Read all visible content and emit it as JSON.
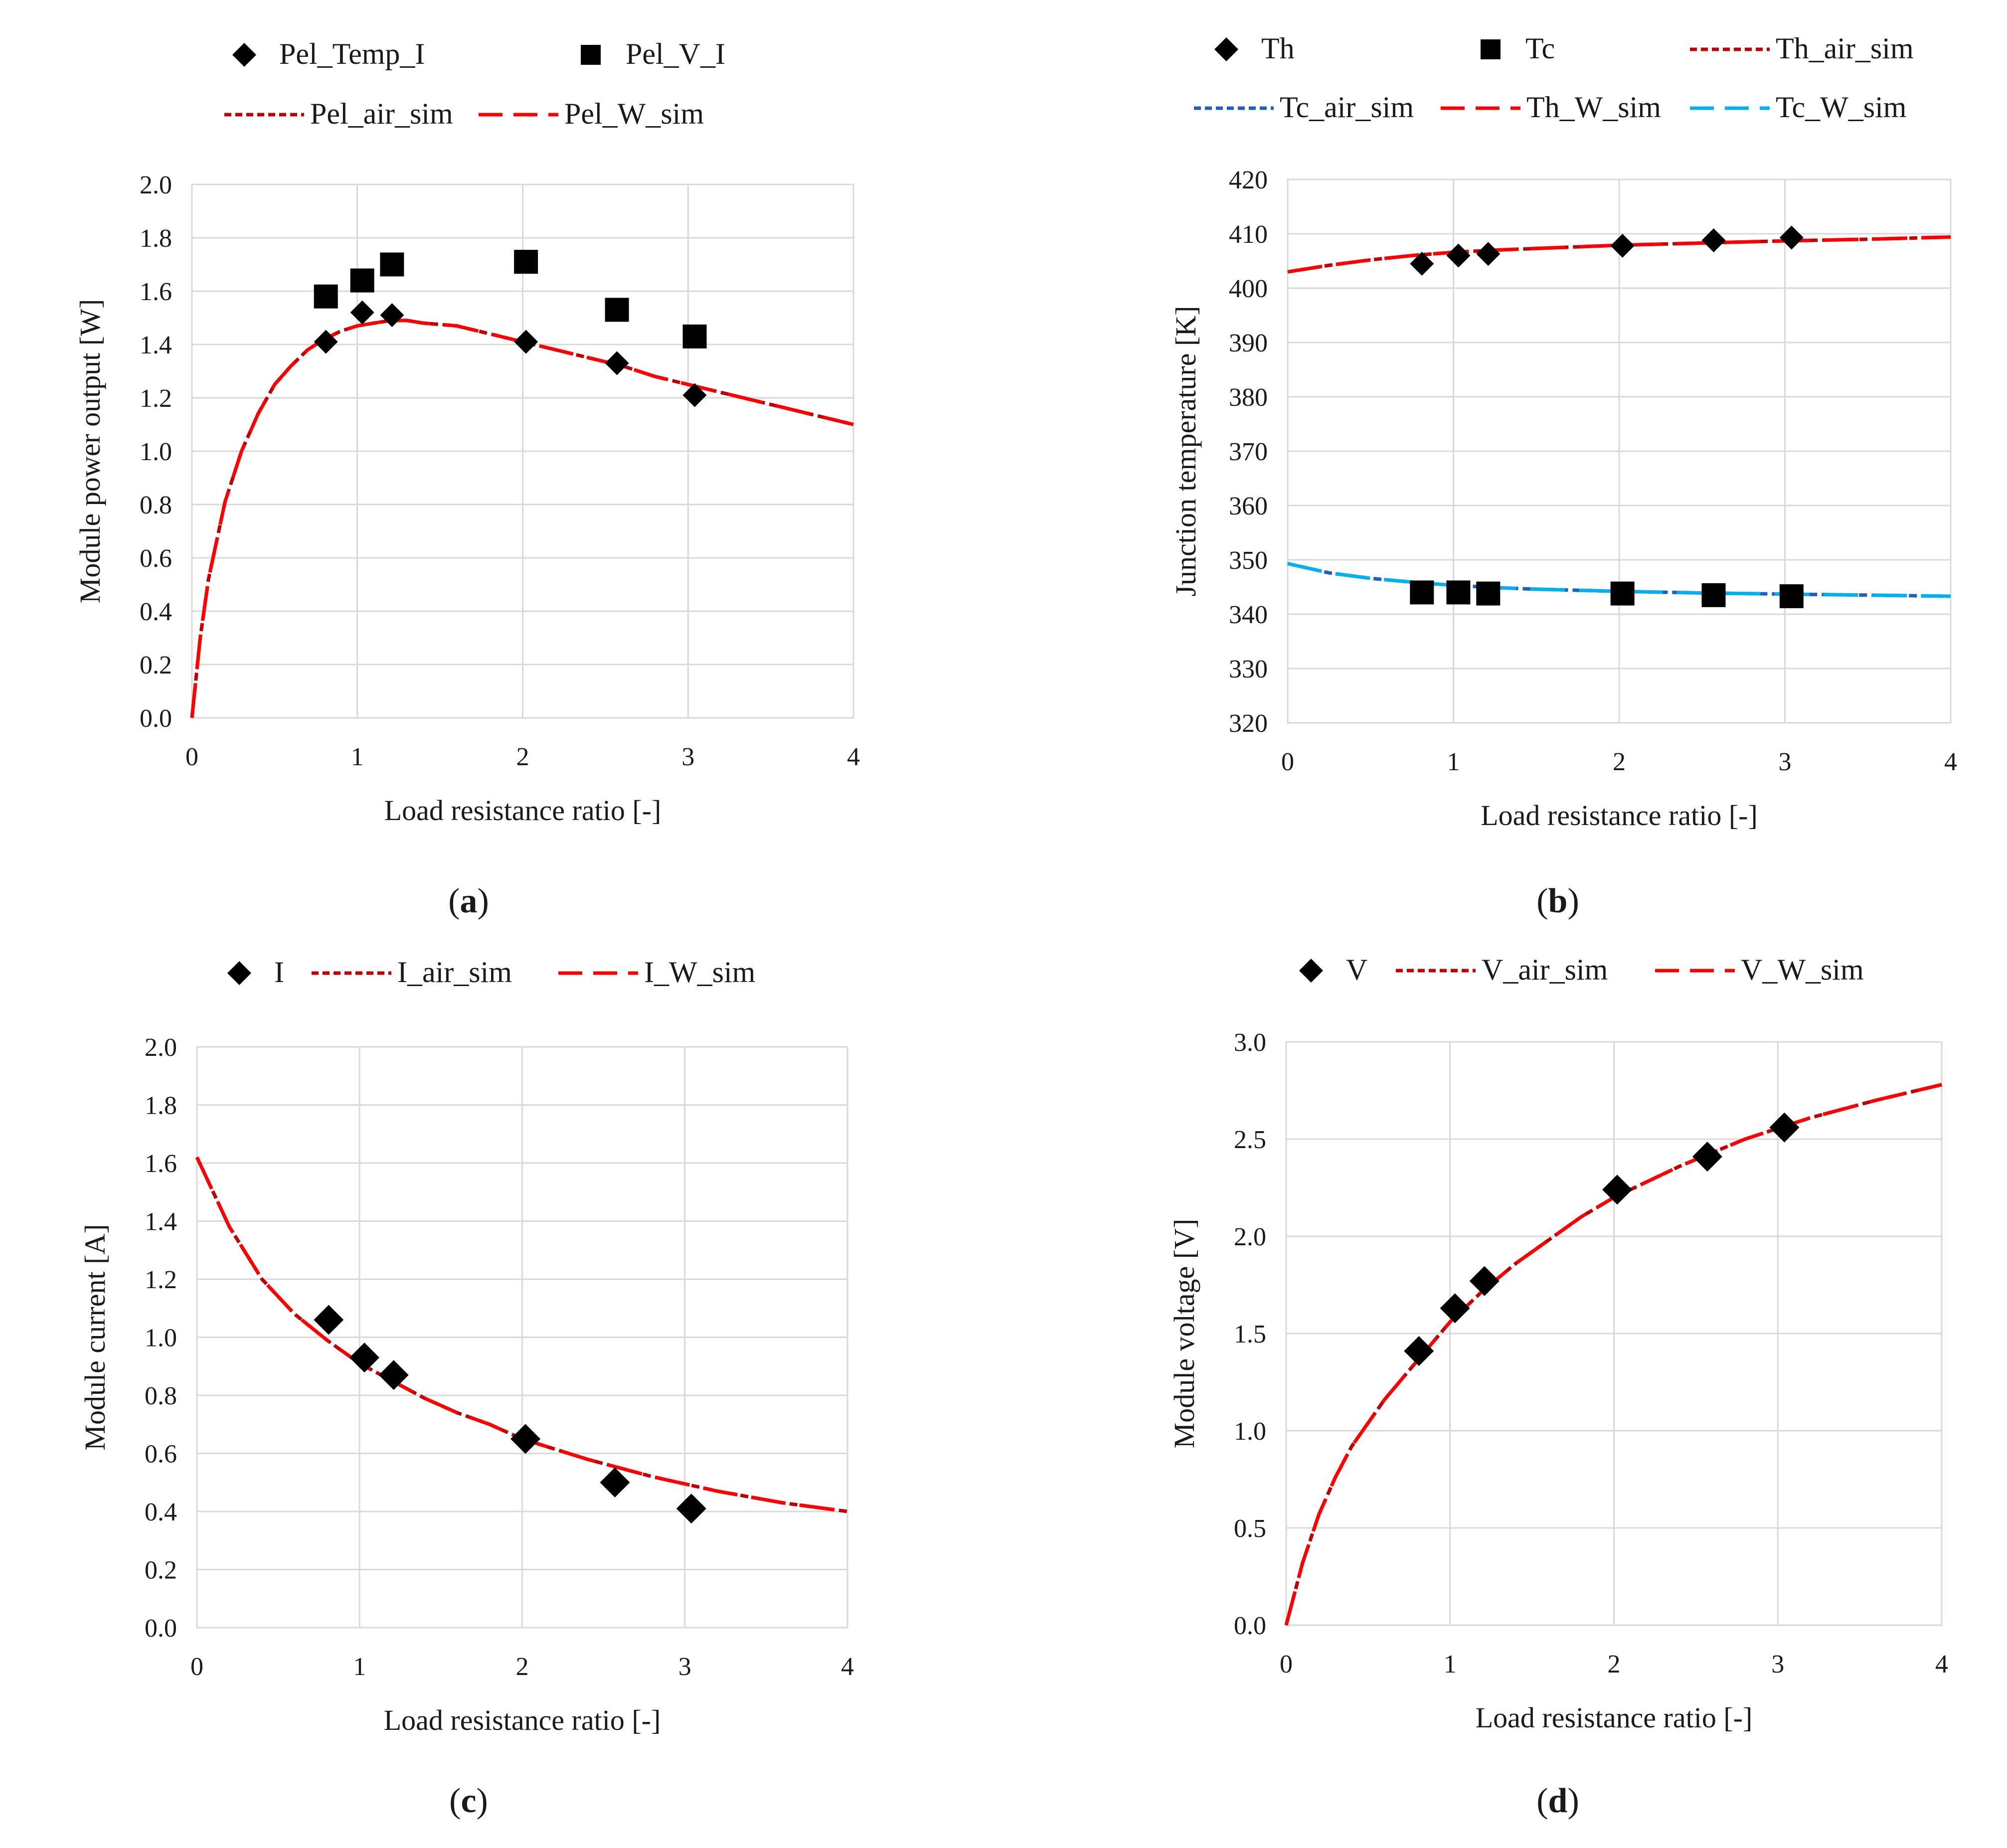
{
  "chart_data": [
    {
      "panel": "a",
      "type": "scatter",
      "caption_letter": "a",
      "xlabel": "Load resistance ratio [-]",
      "ylabel": "Module power output [W]",
      "xlim": [
        0,
        4
      ],
      "ylim": [
        0,
        2
      ],
      "xticks": [
        "0",
        "1",
        "2",
        "3",
        "4"
      ],
      "yticks": [
        "0.0",
        "0.2",
        "0.4",
        "0.6",
        "0.8",
        "1.0",
        "1.2",
        "1.4",
        "1.6",
        "1.8",
        "2.0"
      ],
      "legend_position": "top",
      "series": [
        {
          "name": "Pel_Temp_I",
          "kind": "marker",
          "marker": "diamond",
          "color": "#000000",
          "x": [
            0.81,
            1.03,
            1.21,
            2.02,
            2.57,
            3.04
          ],
          "y": [
            1.41,
            1.52,
            1.51,
            1.41,
            1.33,
            1.21
          ]
        },
        {
          "name": "Pel_V_I",
          "kind": "marker",
          "marker": "square",
          "color": "#000000",
          "x": [
            0.81,
            1.03,
            1.21,
            2.02,
            2.57,
            3.04
          ],
          "y": [
            1.58,
            1.64,
            1.7,
            1.71,
            1.53,
            1.43
          ]
        },
        {
          "name": "Pel_air_sim",
          "kind": "line",
          "dash": "short",
          "color": "#c00000",
          "x": [
            0,
            0.05,
            0.1,
            0.2,
            0.3,
            0.4,
            0.5,
            0.6,
            0.7,
            0.8,
            0.9,
            1.0,
            1.1,
            1.2,
            1.3,
            1.4,
            1.6,
            1.8,
            2.0,
            2.2,
            2.4,
            2.6,
            2.8,
            3.0,
            3.2,
            3.4,
            3.6,
            3.8,
            4.0
          ],
          "y": [
            0,
            0.3,
            0.52,
            0.81,
            1.0,
            1.14,
            1.25,
            1.32,
            1.38,
            1.42,
            1.45,
            1.47,
            1.48,
            1.49,
            1.49,
            1.48,
            1.47,
            1.44,
            1.41,
            1.38,
            1.35,
            1.32,
            1.28,
            1.25,
            1.22,
            1.19,
            1.16,
            1.13,
            1.1
          ]
        },
        {
          "name": "Pel_W_sim",
          "kind": "line",
          "dash": "long",
          "color": "#ff0000",
          "x": [
            0,
            0.05,
            0.1,
            0.2,
            0.3,
            0.4,
            0.5,
            0.6,
            0.7,
            0.8,
            0.9,
            1.0,
            1.1,
            1.2,
            1.3,
            1.4,
            1.6,
            1.8,
            2.0,
            2.2,
            2.4,
            2.6,
            2.8,
            3.0,
            3.2,
            3.4,
            3.6,
            3.8,
            4.0
          ],
          "y": [
            0,
            0.3,
            0.52,
            0.81,
            1.0,
            1.14,
            1.25,
            1.32,
            1.38,
            1.42,
            1.45,
            1.47,
            1.48,
            1.49,
            1.49,
            1.48,
            1.47,
            1.44,
            1.41,
            1.38,
            1.35,
            1.32,
            1.28,
            1.25,
            1.22,
            1.19,
            1.16,
            1.13,
            1.1
          ]
        }
      ]
    },
    {
      "panel": "b",
      "type": "scatter",
      "caption_letter": "b",
      "xlabel": "Load resistance ratio [-]",
      "ylabel": "Junction temperature [K]",
      "xlim": [
        0,
        4
      ],
      "ylim": [
        320,
        420
      ],
      "xticks": [
        "0",
        "1",
        "2",
        "3",
        "4"
      ],
      "yticks": [
        "320",
        "330",
        "340",
        "350",
        "360",
        "370",
        "380",
        "390",
        "400",
        "410",
        "420"
      ],
      "legend_position": "top",
      "series": [
        {
          "name": "Th",
          "kind": "marker",
          "marker": "diamond",
          "color": "#000000",
          "x": [
            0.81,
            1.03,
            1.21,
            2.02,
            2.57,
            3.04
          ],
          "y": [
            404.5,
            406.0,
            406.3,
            407.8,
            408.8,
            409.3
          ]
        },
        {
          "name": "Tc",
          "kind": "marker",
          "marker": "square",
          "color": "#000000",
          "x": [
            0.81,
            1.03,
            1.21,
            2.02,
            2.57,
            3.04
          ],
          "y": [
            344.0,
            344.0,
            343.8,
            343.8,
            343.5,
            343.3
          ]
        },
        {
          "name": "Th_air_sim",
          "kind": "line",
          "dash": "short",
          "color": "#c00000",
          "x": [
            0,
            0.25,
            0.5,
            0.75,
            1.0,
            1.25,
            1.5,
            2.0,
            2.5,
            3.0,
            3.5,
            4.0
          ],
          "y": [
            403.0,
            404.2,
            405.2,
            406.0,
            406.6,
            407.0,
            407.3,
            407.9,
            408.3,
            408.7,
            409.0,
            409.4
          ]
        },
        {
          "name": "Tc_air_sim",
          "kind": "line",
          "dash": "short",
          "color": "#1f5fbf",
          "x": [
            0,
            0.25,
            0.5,
            0.75,
            1.0,
            1.25,
            1.5,
            2.0,
            2.5,
            3.0,
            3.5,
            4.0
          ],
          "y": [
            349.3,
            347.6,
            346.6,
            345.9,
            345.3,
            344.9,
            344.6,
            344.2,
            343.9,
            343.7,
            343.5,
            343.3
          ]
        },
        {
          "name": "Th_W_sim",
          "kind": "line",
          "dash": "long",
          "color": "#ff0000",
          "x": [
            0,
            0.25,
            0.5,
            0.75,
            1.0,
            1.25,
            1.5,
            2.0,
            2.5,
            3.0,
            3.5,
            4.0
          ],
          "y": [
            403.0,
            404.2,
            405.2,
            406.0,
            406.6,
            407.0,
            407.3,
            407.9,
            408.3,
            408.7,
            409.0,
            409.4
          ]
        },
        {
          "name": "Tc_W_sim",
          "kind": "line",
          "dash": "long",
          "color": "#00b0f0",
          "x": [
            0,
            0.25,
            0.5,
            0.75,
            1.0,
            1.25,
            1.5,
            2.0,
            2.5,
            3.0,
            3.5,
            4.0
          ],
          "y": [
            349.3,
            347.6,
            346.6,
            345.9,
            345.3,
            344.9,
            344.6,
            344.2,
            343.9,
            343.7,
            343.5,
            343.3
          ]
        }
      ]
    },
    {
      "panel": "c",
      "type": "scatter",
      "caption_letter": "c",
      "xlabel": "Load resistance ratio [-]",
      "ylabel": "Module current [A]",
      "xlim": [
        0,
        4
      ],
      "ylim": [
        0,
        2
      ],
      "xticks": [
        "0",
        "1",
        "2",
        "3",
        "4"
      ],
      "yticks": [
        "0.0",
        "0.2",
        "0.4",
        "0.6",
        "0.8",
        "1.0",
        "1.2",
        "1.4",
        "1.6",
        "1.8",
        "2.0"
      ],
      "legend_position": "top",
      "series": [
        {
          "name": "I",
          "kind": "marker",
          "marker": "diamond",
          "color": "#000000",
          "x": [
            0.81,
            1.03,
            1.21,
            2.02,
            2.57,
            3.04
          ],
          "y": [
            1.06,
            0.93,
            0.87,
            0.65,
            0.5,
            0.41
          ]
        },
        {
          "name": "I_air_sim",
          "kind": "line",
          "dash": "short",
          "color": "#c00000",
          "x": [
            0,
            0.2,
            0.4,
            0.6,
            0.8,
            1.0,
            1.2,
            1.4,
            1.6,
            1.8,
            2.0,
            2.4,
            2.8,
            3.2,
            3.6,
            4.0
          ],
          "y": [
            1.62,
            1.38,
            1.2,
            1.08,
            0.99,
            0.91,
            0.85,
            0.79,
            0.74,
            0.7,
            0.65,
            0.58,
            0.52,
            0.47,
            0.43,
            0.4
          ]
        },
        {
          "name": "I_W_sim",
          "kind": "line",
          "dash": "long",
          "color": "#ff0000",
          "x": [
            0,
            0.2,
            0.4,
            0.6,
            0.8,
            1.0,
            1.2,
            1.4,
            1.6,
            1.8,
            2.0,
            2.4,
            2.8,
            3.2,
            3.6,
            4.0
          ],
          "y": [
            1.62,
            1.38,
            1.2,
            1.08,
            0.99,
            0.91,
            0.85,
            0.79,
            0.74,
            0.7,
            0.65,
            0.58,
            0.52,
            0.47,
            0.43,
            0.4
          ]
        }
      ]
    },
    {
      "panel": "d",
      "type": "scatter",
      "caption_letter": "d",
      "xlabel": "Load resistance ratio [-]",
      "ylabel": "Module voltage [V]",
      "xlim": [
        0,
        4
      ],
      "ylim": [
        0,
        3
      ],
      "xticks": [
        "0",
        "1",
        "2",
        "3",
        "4"
      ],
      "yticks": [
        "0.0",
        "0.5",
        "1.0",
        "1.5",
        "2.0",
        "2.5",
        "3.0"
      ],
      "legend_position": "top",
      "series": [
        {
          "name": "V",
          "kind": "marker",
          "marker": "diamond",
          "color": "#000000",
          "x": [
            0.81,
            1.03,
            1.21,
            2.02,
            2.57,
            3.04
          ],
          "y": [
            1.41,
            1.63,
            1.77,
            2.24,
            2.41,
            2.56
          ]
        },
        {
          "name": "V_air_sim",
          "kind": "line",
          "dash": "short",
          "color": "#c00000",
          "x": [
            0,
            0.1,
            0.2,
            0.3,
            0.4,
            0.6,
            0.8,
            1.0,
            1.2,
            1.4,
            1.6,
            1.8,
            2.0,
            2.4,
            2.8,
            3.2,
            3.6,
            4.0
          ],
          "y": [
            0,
            0.32,
            0.57,
            0.76,
            0.92,
            1.16,
            1.36,
            1.56,
            1.72,
            1.86,
            1.98,
            2.1,
            2.2,
            2.36,
            2.5,
            2.61,
            2.7,
            2.78
          ]
        },
        {
          "name": "V_W_sim",
          "kind": "line",
          "dash": "long",
          "color": "#ff0000",
          "x": [
            0,
            0.1,
            0.2,
            0.3,
            0.4,
            0.6,
            0.8,
            1.0,
            1.2,
            1.4,
            1.6,
            1.8,
            2.0,
            2.4,
            2.8,
            3.2,
            3.6,
            4.0
          ],
          "y": [
            0,
            0.32,
            0.57,
            0.76,
            0.92,
            1.16,
            1.36,
            1.56,
            1.72,
            1.86,
            1.98,
            2.1,
            2.2,
            2.36,
            2.5,
            2.61,
            2.7,
            2.78
          ]
        }
      ]
    }
  ]
}
